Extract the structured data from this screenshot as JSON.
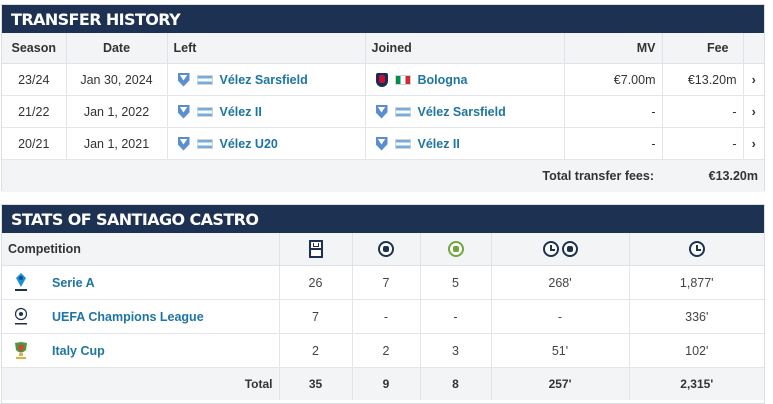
{
  "transfer_history": {
    "title": "Transfer history",
    "columns": {
      "season": "Season",
      "date": "Date",
      "left": "Left",
      "joined": "Joined",
      "mv": "MV",
      "fee": "Fee"
    },
    "rows": [
      {
        "season": "23/24",
        "date": "Jan 30, 2024",
        "left": "Vélez Sarsfield",
        "left_flag": "argentina-flag",
        "joined": "Bologna",
        "joined_flag": "italy-flag",
        "mv": "€7.00m",
        "fee": "€13.20m"
      },
      {
        "season": "21/22",
        "date": "Jan 1, 2022",
        "left": "Vélez II",
        "left_flag": "argentina-flag",
        "joined": "Vélez Sarsfield",
        "joined_flag": "argentina-flag",
        "mv": "-",
        "fee": "-"
      },
      {
        "season": "20/21",
        "date": "Jan 1, 2021",
        "left": "Vélez U20",
        "left_flag": "argentina-flag",
        "joined": "Vélez II",
        "joined_flag": "argentina-flag",
        "mv": "-",
        "fee": "-"
      }
    ],
    "total_label": "Total transfer fees:",
    "total_value": "€13.20m",
    "row_arrow": "›"
  },
  "stats": {
    "title": "Stats of Santiago Castro",
    "competition_header": "Competition",
    "header_icons": [
      "pitch-appearances-icon",
      "ball-goals-icon",
      "ball-assists-icon",
      "clock-minutes-per-goal-icon",
      "clock-minutes-played-icon"
    ],
    "rows": [
      {
        "competition": "Serie A",
        "apps": "26",
        "goals": "7",
        "assists": "5",
        "min_per_goal": "268'",
        "minutes": "1,877'"
      },
      {
        "competition": "UEFA Champions League",
        "apps": "7",
        "goals": "-",
        "assists": "-",
        "min_per_goal": "-",
        "minutes": "336'"
      },
      {
        "competition": "Italy Cup",
        "apps": "2",
        "goals": "2",
        "assists": "3",
        "min_per_goal": "51'",
        "minutes": "102'"
      }
    ],
    "total": {
      "label": "Total",
      "apps": "35",
      "goals": "9",
      "assists": "8",
      "min_per_goal": "257'",
      "minutes": "2,315'"
    }
  },
  "colors": {
    "header_bg": "#1d3153",
    "link": "#1d75a3",
    "row_bg_alt": "#f3f4f6"
  }
}
